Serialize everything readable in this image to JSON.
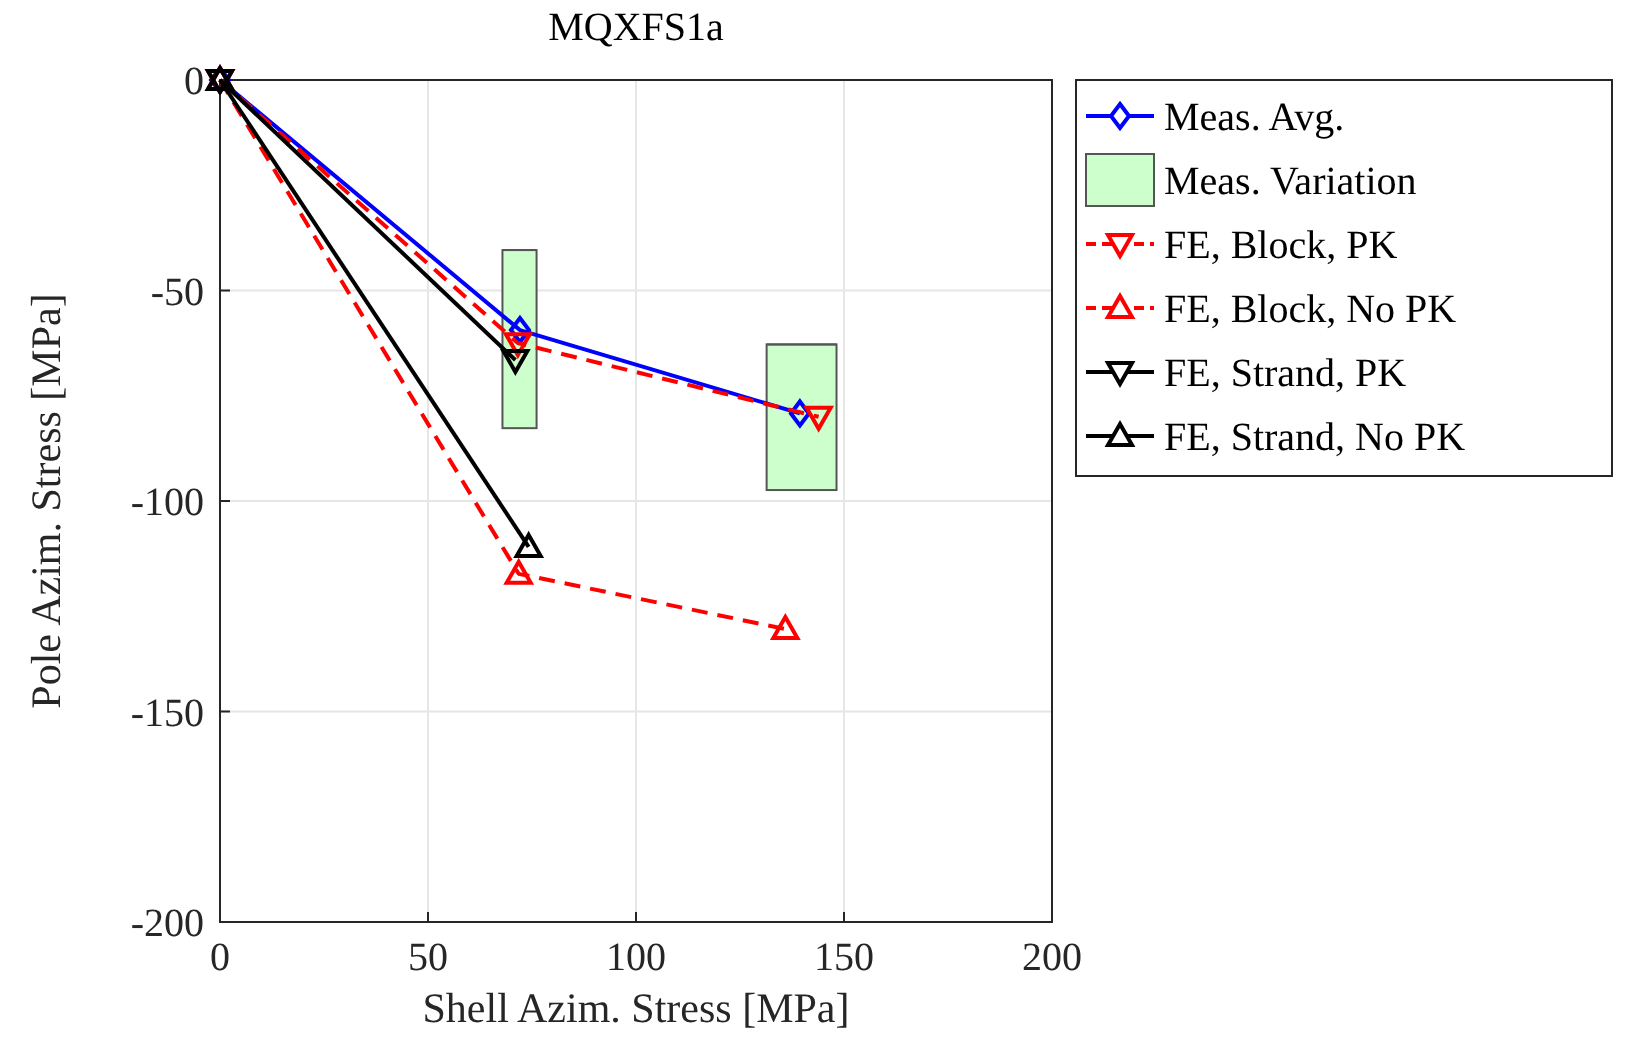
{
  "chart_data": {
    "type": "line",
    "title": "MQXFS1a",
    "xlabel": "Shell Azim. Stress [MPa]",
    "ylabel": "Pole Azim. Stress [MPa]",
    "xlim": [
      0,
      200
    ],
    "ylim": [
      -200,
      0
    ],
    "xticks": [
      0,
      50,
      100,
      150,
      200
    ],
    "yticks": [
      -200,
      -150,
      -100,
      -50,
      0
    ],
    "grid": true,
    "legend": "right",
    "series": [
      {
        "name": "Meas. Avg.",
        "color": "#0000ff",
        "marker": "diamond",
        "line_style": "solid",
        "x": [
          0,
          72.1,
          139.4
        ],
        "values": [
          0,
          -59.4,
          -79.2
        ]
      },
      {
        "name": "Meas. Variation",
        "type": "bar",
        "color": "#ccffcc",
        "x": [
          72,
          139.8
        ],
        "base": [
          -82.7,
          -97.4
        ],
        "values": [
          42.3,
          34.6
        ],
        "xerrors": [
          [
            67.9,
            76.1
          ],
          [
            131.4,
            148.2
          ]
        ]
      },
      {
        "name": "FE, Block, PK",
        "color": "#ff0000",
        "marker": "triangle-down",
        "line_style": "dashed",
        "x": [
          0,
          71.6,
          143.9
        ],
        "values": [
          0,
          -62.5,
          -80
        ]
      },
      {
        "name": "FE, Block, No PK",
        "color": "#ff0000",
        "marker": "triangle",
        "line_style": "dashed",
        "x": [
          0,
          71.8,
          135.9
        ],
        "values": [
          0,
          -117.3,
          -130.4
        ]
      },
      {
        "name": "FE, Strand, PK",
        "color": "#000000",
        "marker": "triangle-down",
        "line_style": "solid",
        "x": [
          0,
          71
        ],
        "values": [
          0,
          -66.5
        ]
      },
      {
        "name": "FE, Strand, No PK",
        "color": "#000000",
        "marker": "triangle",
        "line_style": "solid",
        "x": [
          0,
          74.2
        ],
        "values": [
          0,
          -110.9
        ]
      }
    ]
  }
}
